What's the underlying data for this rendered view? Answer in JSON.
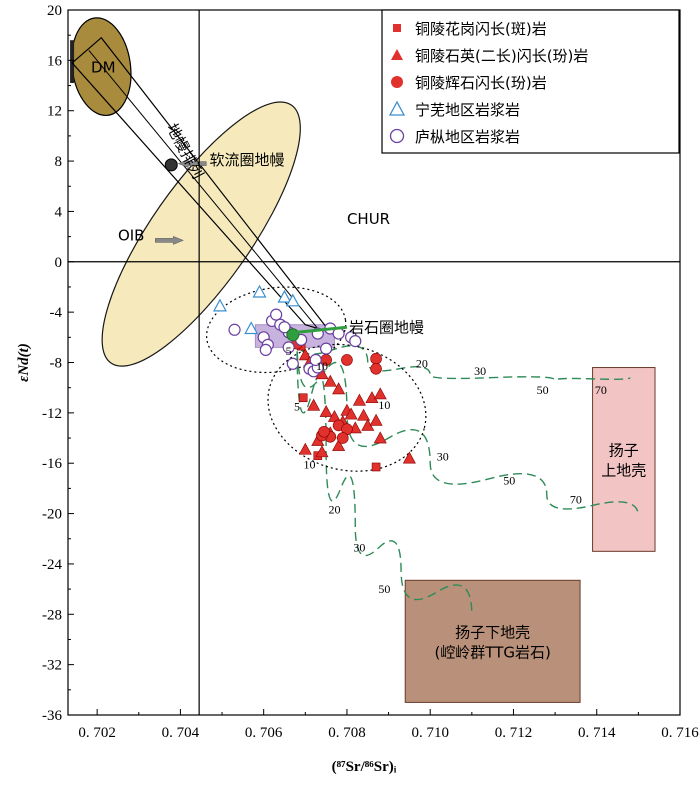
{
  "chart_data": {
    "type": "scatter",
    "xlabel": "(⁸⁷Sr/⁸⁶Sr)ᵢ",
    "ylabel": "εNd(t)",
    "xlim": [
      0.7013,
      0.716
    ],
    "ylim": [
      -36,
      20
    ],
    "xticks": [
      0.702,
      0.704,
      0.706,
      0.708,
      0.71,
      0.712,
      0.714,
      0.716
    ],
    "xtick_labels": [
      "0. 702",
      "0. 704",
      "0. 706",
      "0. 708",
      "0. 710",
      "0. 712",
      "0. 714",
      "0. 716"
    ],
    "yticks": [
      20,
      16,
      12,
      8,
      4,
      0,
      -4,
      -8,
      -12,
      -16,
      -20,
      -24,
      -28,
      -32,
      -36
    ],
    "ref_lines": {
      "x": 0.70445,
      "y": 0,
      "label": "CHUR"
    },
    "legend": {
      "placement": "top-right",
      "entries": [
        {
          "label": "铜陵花岗闪长(斑)岩",
          "marker": "square",
          "color": "#e0312c"
        },
        {
          "label": "铜陵石英(二长)闪长(玢)岩",
          "marker": "triangle",
          "color": "#e0312c"
        },
        {
          "label": "铜陵辉石闪长(玢)岩",
          "marker": "circle",
          "color": "#e0312c"
        },
        {
          "label": "宁芜地区岩浆岩",
          "marker": "triangle-open",
          "color": "#3a8fd0"
        },
        {
          "label": "庐枞地区岩浆岩",
          "marker": "circle-open",
          "color": "#6a3fa0"
        }
      ]
    },
    "series": [
      {
        "name": "铜陵花岗闪长(斑)岩",
        "marker": "square",
        "points": [
          [
            0.7069,
            -6.7
          ],
          [
            0.7072,
            -8.0
          ],
          [
            0.70695,
            -10.8
          ],
          [
            0.7073,
            -15.4
          ],
          [
            0.7087,
            -16.3
          ]
        ]
      },
      {
        "name": "铜陵石英(二长)闪长(玢)岩",
        "marker": "triangle",
        "points": [
          [
            0.707,
            -7.4
          ],
          [
            0.7071,
            -8.0
          ],
          [
            0.7074,
            -8.9
          ],
          [
            0.7076,
            -9.5
          ],
          [
            0.7078,
            -10.1
          ],
          [
            0.7072,
            -11.4
          ],
          [
            0.7075,
            -11.9
          ],
          [
            0.708,
            -11.8
          ],
          [
            0.7084,
            -12.2
          ],
          [
            0.7086,
            -10.8
          ],
          [
            0.7088,
            -10.5
          ],
          [
            0.7079,
            -12.7
          ],
          [
            0.7082,
            -13.2
          ],
          [
            0.7076,
            -13.6
          ],
          [
            0.7073,
            -14.2
          ],
          [
            0.7078,
            -14.6
          ],
          [
            0.707,
            -14.9
          ],
          [
            0.7085,
            -13.0
          ],
          [
            0.7087,
            -12.6
          ],
          [
            0.7081,
            -12.1
          ],
          [
            0.7077,
            -12.3
          ],
          [
            0.7083,
            -11.0
          ],
          [
            0.7088,
            -14.0
          ],
          [
            0.7095,
            -15.6
          ],
          [
            0.7074,
            -15.1
          ]
        ]
      },
      {
        "name": "铜陵辉石闪长(玢)岩",
        "marker": "circle",
        "points": [
          [
            0.7068,
            -6.5
          ],
          [
            0.7075,
            -7.8
          ],
          [
            0.708,
            -7.8
          ],
          [
            0.7087,
            -7.7
          ],
          [
            0.7087,
            -8.5
          ],
          [
            0.7078,
            -13.0
          ],
          [
            0.708,
            -13.3
          ],
          [
            0.7076,
            -13.9
          ],
          [
            0.7079,
            -14.0
          ],
          [
            0.7074,
            -13.8
          ],
          [
            0.70745,
            -13.5
          ]
        ]
      },
      {
        "name": "宁芜地区岩浆岩",
        "marker": "triangle-open",
        "points": [
          [
            0.70495,
            -3.5
          ],
          [
            0.7059,
            -2.4
          ],
          [
            0.7065,
            -2.8
          ],
          [
            0.7067,
            -3.1
          ],
          [
            0.7057,
            -5.3
          ]
        ]
      },
      {
        "name": "庐枞地区岩浆岩",
        "marker": "circle-open",
        "points": [
          [
            0.7053,
            -5.4
          ],
          [
            0.7062,
            -4.7
          ],
          [
            0.7063,
            -4.2
          ],
          [
            0.7064,
            -5.0
          ],
          [
            0.7066,
            -5.6
          ],
          [
            0.706,
            -6.0
          ],
          [
            0.7061,
            -6.6
          ],
          [
            0.70605,
            -7.0
          ],
          [
            0.7066,
            -6.8
          ],
          [
            0.7069,
            -6.2
          ],
          [
            0.7073,
            -5.7
          ],
          [
            0.7076,
            -5.3
          ],
          [
            0.7078,
            -5.7
          ],
          [
            0.7081,
            -6.0
          ],
          [
            0.7082,
            -6.3
          ],
          [
            0.7065,
            -5.2
          ],
          [
            0.7071,
            -8.5
          ],
          [
            0.7072,
            -8.7
          ],
          [
            0.7073,
            -8.4
          ],
          [
            0.70725,
            -7.8
          ],
          [
            0.7067,
            -8.1
          ],
          [
            0.7075,
            -6.9
          ]
        ]
      }
    ],
    "regions": [
      {
        "name": "DM",
        "label": "DM",
        "color": "#a98b3d",
        "center": [
          0.7021,
          15.5
        ],
        "rx": 0.0007,
        "ry": 3.9,
        "angle_deg": -8
      },
      {
        "name": "OIB",
        "label": "OIB",
        "color": "#f6e8b6",
        "center": [
          0.7045,
          2.2
        ],
        "rx": 0.0028,
        "ry": 3.3,
        "angle_deg": -55
      },
      {
        "name": "岩石圈地幔",
        "label": "岩石圈地幔",
        "color": "#b59ad2",
        "x0": 0.7058,
        "x1": 0.7077,
        "y0": -6.8,
        "y1": -5.0
      },
      {
        "name": "扬子上地壳",
        "label": "扬子\n上地壳",
        "color": "#f2c4c4",
        "x0": 0.7139,
        "x1": 0.7154,
        "y0": -23.0,
        "y1": -8.4
      },
      {
        "name": "扬子下地壳",
        "label": "扬子下地壳\n(崆岭群TTG岩石)",
        "color": "#b9917a",
        "x0": 0.7094,
        "x1": 0.7136,
        "y0": -35.0,
        "y1": -25.3
      }
    ],
    "mixing_curves": [
      {
        "name": "curve-1",
        "points": [
          [
            0.7068,
            -6.0
          ],
          [
            0.7085,
            -8.0
          ],
          [
            0.71,
            -9.0
          ],
          [
            0.713,
            -9.4
          ],
          [
            0.7148,
            -9.2
          ]
        ],
        "ticks": [
          {
            "label": "20",
            "x": 0.7098,
            "y": -8.4
          },
          {
            "label": "30",
            "x": 0.7112,
            "y": -9.0
          },
          {
            "label": "50",
            "x": 0.7127,
            "y": -10.5
          },
          {
            "label": "70",
            "x": 0.7141,
            "y": -10.5
          }
        ]
      },
      {
        "name": "curve-2",
        "points": [
          [
            0.7068,
            -6.0
          ],
          [
            0.708,
            -12.0
          ],
          [
            0.71,
            -16.0
          ],
          [
            0.7128,
            -18.5
          ],
          [
            0.715,
            -20.2
          ]
        ],
        "ticks": [
          {
            "label": "30",
            "x": 0.7103,
            "y": -15.8
          },
          {
            "label": "50",
            "x": 0.7119,
            "y": -17.7
          },
          {
            "label": "70",
            "x": 0.7135,
            "y": -19.2
          }
        ]
      },
      {
        "name": "curve-3",
        "points": [
          [
            0.7068,
            -6.0
          ],
          [
            0.7075,
            -15.0
          ],
          [
            0.7082,
            -21.0
          ],
          [
            0.7093,
            -24.5
          ],
          [
            0.711,
            -28.0
          ]
        ],
        "ticks": [
          {
            "label": "20",
            "x": 0.7077,
            "y": -20.0
          },
          {
            "label": "30",
            "x": 0.7083,
            "y": -23.0
          },
          {
            "label": "50",
            "x": 0.7089,
            "y": -26.3
          }
        ]
      }
    ],
    "inner_labels": [
      {
        "text": "5",
        "x": 0.7066,
        "y": -7.4
      },
      {
        "text": "10",
        "x": 0.7074,
        "y": -8.6
      },
      {
        "text": "5",
        "x": 0.7068,
        "y": -11.8
      },
      {
        "text": "10",
        "x": 0.7089,
        "y": -11.7
      },
      {
        "text": "10",
        "x": 0.7071,
        "y": -16.4
      }
    ],
    "annotations": [
      {
        "text": "地幔排列",
        "x": 0.704,
        "y": 8.6
      },
      {
        "text": "软流圈地幔",
        "x": 0.7047,
        "y": 7.7
      },
      {
        "text": "岩石圈地幔",
        "x": 0.70805,
        "y": -5.6
      },
      {
        "text": "OIB",
        "x": 0.7025,
        "y": 1.7
      },
      {
        "text": "CHUR",
        "x": 0.708,
        "y": 3.0
      }
    ]
  }
}
